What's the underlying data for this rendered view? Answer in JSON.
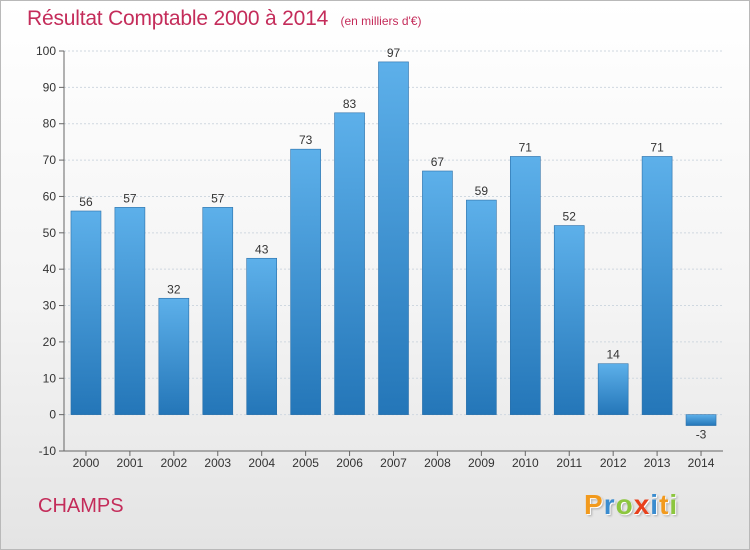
{
  "header": {
    "title": "Résultat Comptable 2000 à 2014",
    "subtitle": "(en milliers d'€)"
  },
  "footer": {
    "commune": "CHAMPS",
    "brand": "Proxiti",
    "brand_letters": [
      {
        "char": "P",
        "color": "#f29a1d"
      },
      {
        "char": "r",
        "color": "#3a8ccf"
      },
      {
        "char": "o",
        "color": "#8cc63e"
      },
      {
        "char": "x",
        "color": "#e8401c"
      },
      {
        "char": "i",
        "color": "#3a8ccf"
      },
      {
        "char": "t",
        "color": "#f29a1d"
      },
      {
        "char": "i",
        "color": "#8cc63e"
      }
    ]
  },
  "colors": {
    "title": "#c42c5a",
    "bar_top": "#5db0ea",
    "bar_bottom": "#2476b8",
    "grid": "#cfd8e0",
    "axis": "#666666"
  },
  "chart_data": {
    "type": "bar",
    "title": "Résultat Comptable 2000 à 2014",
    "subtitle": "(en milliers d'€)",
    "categories": [
      "2000",
      "2001",
      "2002",
      "2003",
      "2004",
      "2005",
      "2006",
      "2007",
      "2008",
      "2009",
      "2010",
      "2011",
      "2012",
      "2013",
      "2014"
    ],
    "values": [
      56,
      57,
      32,
      57,
      43,
      73,
      83,
      97,
      67,
      59,
      71,
      52,
      14,
      71,
      -3
    ],
    "value_labels": [
      "56",
      "57",
      "32",
      "57",
      "43",
      "73",
      "83",
      "97",
      "67",
      "59",
      "71",
      "52",
      "14",
      "71",
      "-3"
    ],
    "yticks": [
      "-10",
      "0",
      "10",
      "20",
      "30",
      "40",
      "50",
      "60",
      "70",
      "80",
      "90",
      "100"
    ],
    "ylim": [
      -10,
      100
    ],
    "grid": true,
    "legend": "none"
  }
}
